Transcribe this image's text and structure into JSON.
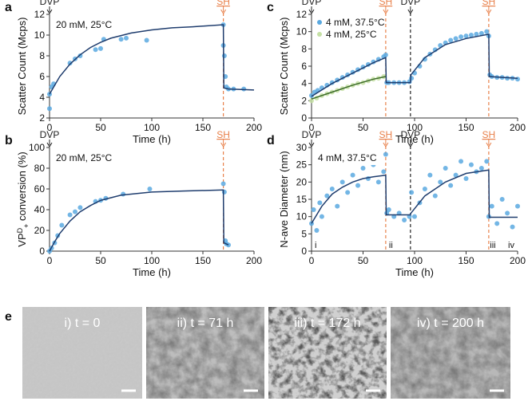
{
  "chart_data": [
    {
      "type": "scatter",
      "label": "a",
      "note": "20 mM, 25°C",
      "xlabel": "Time (h)",
      "ylabel": "Scatter Count (Mcps)",
      "xlim": [
        0,
        200
      ],
      "xticks": [
        0,
        50,
        100,
        150,
        200
      ],
      "ylim": [
        2,
        12
      ],
      "yticks": [
        2,
        4,
        6,
        8,
        10,
        12
      ],
      "annotations": [
        {
          "text": "DVP",
          "x": 0,
          "color": "#222"
        },
        {
          "text": "SH",
          "x": 170,
          "color": "#e8804a",
          "line": true
        }
      ],
      "series": [
        {
          "mode": "markers",
          "color": "#5aa9e0",
          "x": [
            0,
            0,
            2,
            4,
            20,
            25,
            30,
            45,
            50,
            53,
            70,
            75,
            95,
            170,
            170,
            171,
            172,
            173,
            175,
            180,
            190
          ],
          "values": [
            2.9,
            4.3,
            5,
            5.3,
            7.3,
            7.7,
            8,
            8.6,
            8.7,
            9.6,
            9.6,
            9.7,
            9.5,
            11,
            9,
            8,
            6,
            5,
            4.8,
            4.8,
            4.8
          ]
        },
        {
          "mode": "line",
          "color": "#1f3d6e",
          "x": [
            0,
            10,
            20,
            30,
            40,
            50,
            60,
            80,
            100,
            120,
            140,
            170,
            170.5,
            175,
            200
          ],
          "values": [
            4.3,
            6,
            7.2,
            8.1,
            8.8,
            9.3,
            9.7,
            10.2,
            10.5,
            10.7,
            10.8,
            11,
            4.9,
            4.8,
            4.7
          ]
        }
      ]
    },
    {
      "type": "scatter",
      "label": "b",
      "note": "20 mM, 25°C",
      "xlabel": "Time (h)",
      "ylabel_parts": [
        "VP",
        "D",
        "+",
        " conversion (%)"
      ],
      "xlim": [
        0,
        200
      ],
      "xticks": [
        0,
        50,
        100,
        150,
        200
      ],
      "ylim": [
        0,
        100
      ],
      "yticks": [
        0,
        20,
        40,
        60,
        80,
        100
      ],
      "annotations": [
        {
          "text": "DVP",
          "x": 0,
          "color": "#222"
        },
        {
          "text": "SH",
          "x": 170,
          "color": "#e8804a",
          "line": true
        }
      ],
      "series": [
        {
          "mode": "markers",
          "color": "#5aa9e0",
          "x": [
            0,
            2,
            5,
            8,
            12,
            20,
            25,
            30,
            45,
            50,
            55,
            72,
            98,
            170,
            171,
            172,
            173,
            175
          ],
          "values": [
            0,
            3,
            8,
            15,
            25,
            35,
            38,
            42,
            48,
            49,
            51,
            55,
            60,
            65,
            57,
            10,
            7,
            6
          ]
        },
        {
          "mode": "line",
          "color": "#1f3d6e",
          "x": [
            0,
            5,
            10,
            20,
            30,
            40,
            50,
            70,
            100,
            130,
            170,
            170.5,
            175
          ],
          "values": [
            0,
            9,
            17,
            29,
            38,
            44,
            49,
            54,
            57,
            58,
            59,
            8,
            6
          ]
        }
      ]
    },
    {
      "type": "scatter",
      "label": "c",
      "xlabel": "Time (h)",
      "ylabel": "Scatter Count (Mcps)",
      "xlim": [
        0,
        200
      ],
      "xticks": [
        0,
        50,
        100,
        150,
        200
      ],
      "ylim": [
        0,
        12
      ],
      "yticks": [
        0,
        2,
        4,
        6,
        8,
        10,
        12
      ],
      "annotations": [
        {
          "text": "DVP",
          "x": 0,
          "color": "#222"
        },
        {
          "text": "SH",
          "x": 72,
          "color": "#e8804a",
          "line": true
        },
        {
          "text": "DVP",
          "x": 96,
          "color": "#222",
          "line": true
        },
        {
          "text": "SH",
          "x": 172,
          "color": "#e8804a",
          "line": true
        }
      ],
      "series": [
        {
          "name": "4 mM, 37.5°C",
          "mode": "markers",
          "color": "#5aa9e0",
          "x": [
            0,
            3,
            6,
            10,
            15,
            20,
            25,
            30,
            35,
            40,
            45,
            50,
            55,
            60,
            65,
            70,
            72,
            73,
            75,
            80,
            85,
            90,
            95,
            97,
            100,
            105,
            110,
            115,
            120,
            125,
            130,
            135,
            140,
            145,
            150,
            155,
            160,
            165,
            170,
            172,
            173,
            175,
            180,
            185,
            190,
            195,
            200
          ],
          "values": [
            2.6,
            3,
            3.2,
            3.5,
            3.8,
            4.1,
            4.4,
            4.7,
            5,
            5.3,
            5.6,
            5.9,
            6.2,
            6.5,
            6.8,
            7.1,
            7.3,
            4.1,
            4.1,
            4.1,
            4.1,
            4.1,
            4.2,
            4.6,
            5.2,
            6,
            6.8,
            7.4,
            7.9,
            8.4,
            8.7,
            9,
            9.2,
            9.4,
            9.5,
            9.6,
            9.7,
            9.8,
            10,
            9.5,
            5,
            4.8,
            4.7,
            4.7,
            4.6,
            4.6,
            4.5
          ]
        },
        {
          "name": "4 mM, 25°C",
          "mode": "markers",
          "color": "#c5e0a5",
          "x": [
            0,
            5,
            10,
            15,
            20,
            25,
            30,
            35,
            40,
            45,
            50,
            55,
            60,
            65,
            70
          ],
          "values": [
            2,
            2.3,
            2.6,
            2.8,
            3,
            3.2,
            3.4,
            3.6,
            3.8,
            4,
            4.1,
            4.3,
            4.5,
            4.6,
            4.8
          ]
        },
        {
          "mode": "line",
          "color": "#1f3d6e",
          "x": [
            0,
            20,
            40,
            60,
            72,
            72.5,
            96,
            96.5,
            110,
            130,
            150,
            172,
            172.5,
            200
          ],
          "values": [
            2.5,
            4,
            5.2,
            6.4,
            7,
            4.1,
            4.1,
            5,
            7,
            8.5,
            9.2,
            9.7,
            4.8,
            4.6
          ]
        },
        {
          "mode": "line",
          "color": "#3d6b2a",
          "x": [
            0,
            20,
            40,
            60,
            72
          ],
          "values": [
            2.2,
            3,
            3.8,
            4.5,
            4.8
          ]
        }
      ]
    },
    {
      "type": "scatter",
      "label": "d",
      "note": "4 mM, 37.5°C",
      "xlabel": "Time (h)",
      "ylabel": "N-ave Diameter (nm)",
      "xlim": [
        0,
        200
      ],
      "xticks": [
        0,
        50,
        100,
        150,
        200
      ],
      "ylim": [
        0,
        30
      ],
      "yticks": [
        0,
        5,
        10,
        15,
        20,
        25,
        30
      ],
      "annotations": [
        {
          "text": "DVP",
          "x": 0,
          "color": "#222"
        },
        {
          "text": "SH",
          "x": 72,
          "color": "#e8804a",
          "line": true
        },
        {
          "text": "DVP",
          "x": 96,
          "color": "#222",
          "line": true
        },
        {
          "text": "SH",
          "x": 172,
          "color": "#e8804a",
          "line": true
        }
      ],
      "point_labels": [
        {
          "text": "i",
          "x": 0
        },
        {
          "text": "ii",
          "x": 72
        },
        {
          "text": "iii",
          "x": 170
        },
        {
          "text": "iv",
          "x": 200
        }
      ],
      "series": [
        {
          "mode": "markers",
          "color": "#5aa9e0",
          "x": [
            0,
            2,
            5,
            8,
            10,
            15,
            20,
            25,
            30,
            35,
            40,
            45,
            50,
            55,
            60,
            65,
            70,
            72,
            73,
            75,
            80,
            85,
            90,
            95,
            97,
            100,
            105,
            110,
            115,
            120,
            125,
            130,
            135,
            140,
            145,
            150,
            155,
            160,
            165,
            170,
            172,
            175,
            180,
            185,
            190,
            195,
            200
          ],
          "values": [
            8,
            12,
            6,
            14,
            10,
            16,
            18,
            13,
            20,
            17,
            22,
            19,
            24,
            21,
            25,
            20,
            23,
            28,
            11,
            12,
            10,
            11,
            9,
            10,
            17,
            10,
            14,
            18,
            22,
            16,
            20,
            24,
            19,
            22,
            26,
            21,
            25,
            23,
            24,
            26,
            10,
            13,
            8,
            15,
            11,
            7,
            13
          ]
        },
        {
          "mode": "line",
          "color": "#1f3d6e",
          "x": [
            0,
            10,
            20,
            30,
            40,
            50,
            60,
            72,
            72.5,
            96,
            96.5,
            110,
            130,
            150,
            172,
            172.5,
            200
          ],
          "values": [
            8,
            13,
            16.5,
            18.5,
            20,
            21,
            21.5,
            22,
            10.5,
            10.5,
            11,
            16,
            20,
            22.5,
            23.5,
            9.8,
            9.8
          ]
        }
      ]
    }
  ],
  "images": {
    "label": "e",
    "captions": [
      "i) t = 0",
      "ii) t = 71 h",
      "iii) t = 172 h",
      "iv) t = 200 h"
    ]
  }
}
